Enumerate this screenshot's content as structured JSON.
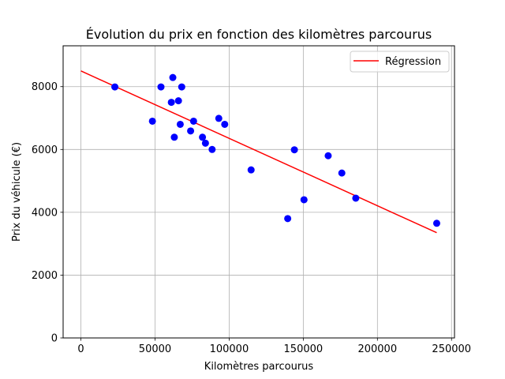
{
  "chart_data": {
    "type": "scatter",
    "title": "Évolution du prix en fonction des kilomètres parcourus",
    "xlabel": "Kilomètres parcourus",
    "ylabel": "Prix du véhicule (€)",
    "xlim": [
      -12000,
      252000
    ],
    "ylim": [
      0,
      9300
    ],
    "xticks": [
      0,
      50000,
      100000,
      150000,
      200000,
      250000
    ],
    "xtick_labels": [
      "0",
      "50000",
      "100000",
      "150000",
      "200000",
      "250000"
    ],
    "yticks": [
      0,
      2000,
      4000,
      6000,
      8000
    ],
    "ytick_labels": [
      "0",
      "2000",
      "4000",
      "6000",
      "8000"
    ],
    "grid": true,
    "legend_position": "top-right",
    "series": [
      {
        "type": "scatter",
        "color": "#0000ff",
        "points": [
          [
            22899,
            7990
          ],
          [
            48235,
            6900
          ],
          [
            54000,
            7990
          ],
          [
            61000,
            7500
          ],
          [
            62000,
            8290
          ],
          [
            63000,
            6390
          ],
          [
            65800,
            7550
          ],
          [
            67000,
            6800
          ],
          [
            68000,
            7990
          ],
          [
            74000,
            6590
          ],
          [
            76000,
            6900
          ],
          [
            82000,
            6390
          ],
          [
            84000,
            6200
          ],
          [
            88500,
            6000
          ],
          [
            93000,
            6990
          ],
          [
            97000,
            6800
          ],
          [
            114800,
            5350
          ],
          [
            139500,
            3800
          ],
          [
            144000,
            5990
          ],
          [
            150500,
            4400
          ],
          [
            166800,
            5800
          ],
          [
            176000,
            5250
          ],
          [
            185400,
            4450
          ],
          [
            240000,
            3650
          ]
        ]
      },
      {
        "type": "line",
        "name": "Régression",
        "color": "#ff0000",
        "x": [
          0,
          240000
        ],
        "y": [
          8500,
          3350
        ]
      }
    ]
  }
}
